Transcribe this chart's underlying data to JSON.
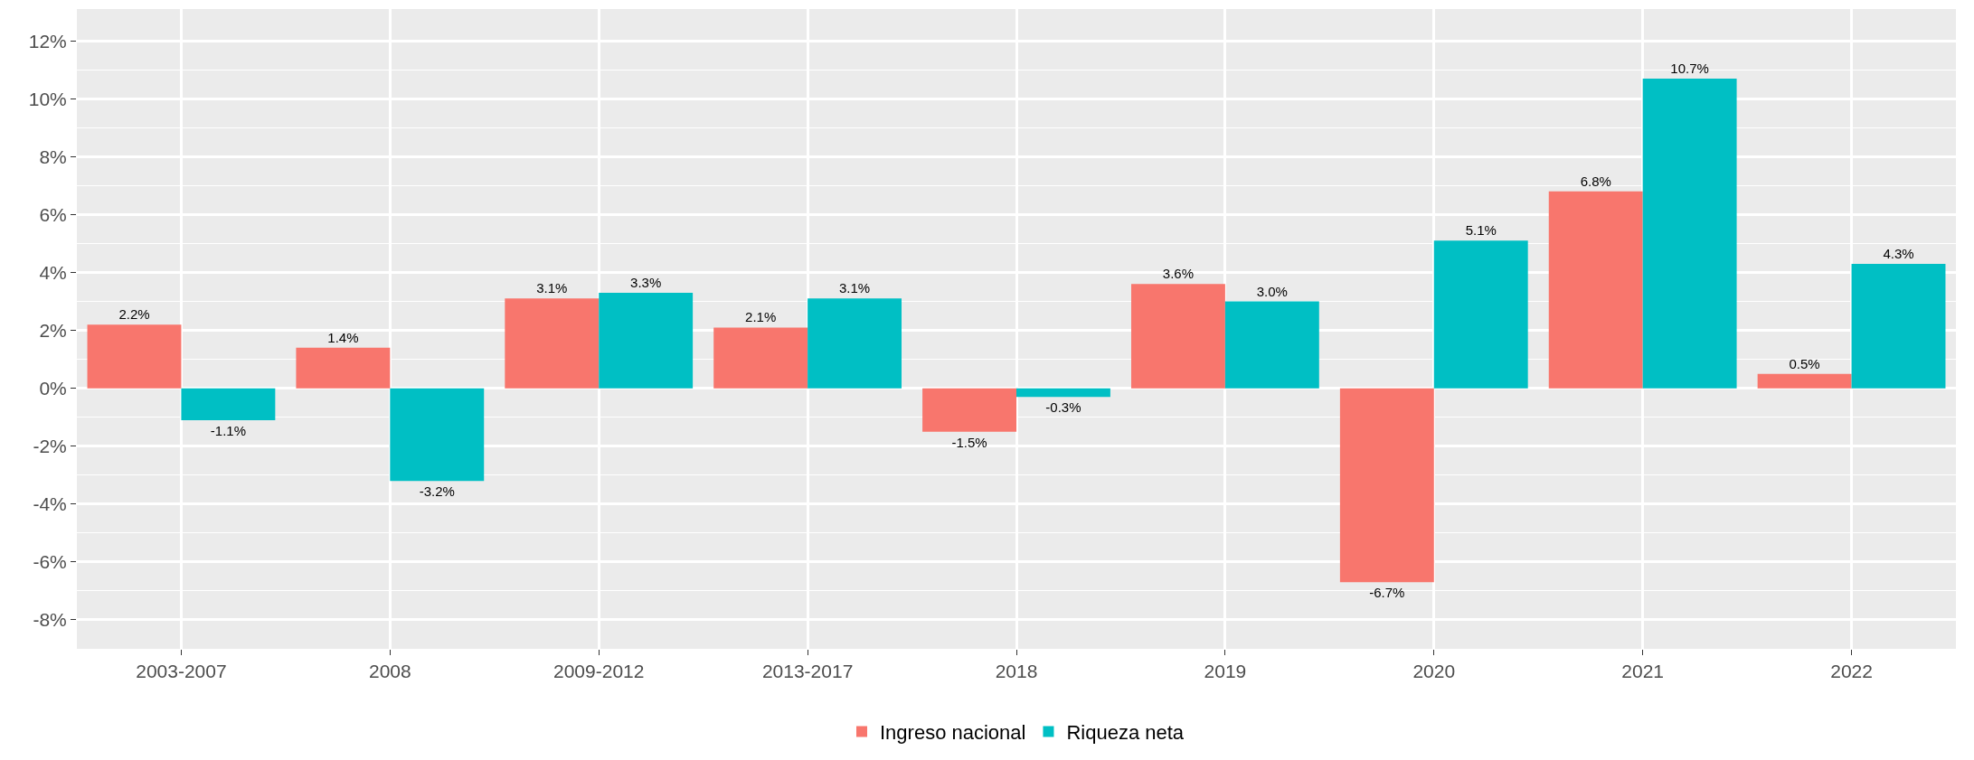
{
  "chart_data": {
    "type": "bar",
    "categories": [
      "2003-2007",
      "2008",
      "2009-2012",
      "2013-2017",
      "2018",
      "2019",
      "2020",
      "2021",
      "2022"
    ],
    "series": [
      {
        "name": "Ingreso nacional",
        "color": "#f8766d",
        "values": [
          2.2,
          1.4,
          3.1,
          2.1,
          -1.5,
          3.6,
          -6.7,
          6.8,
          0.5
        ],
        "value_labels": [
          "2.2%",
          "1.4%",
          "3.1%",
          "2.1%",
          "-1.5%",
          "3.6%",
          "-6.7%",
          "6.8%",
          "0.5%"
        ]
      },
      {
        "name": "Riqueza neta",
        "color": "#00bfc4",
        "values": [
          -1.1,
          -3.2,
          3.3,
          3.1,
          -0.3,
          3.0,
          5.1,
          10.7,
          4.3
        ],
        "value_labels": [
          "-1.1%",
          "-3.2%",
          "3.3%",
          "3.1%",
          "-0.3%",
          "3.0%",
          "5.1%",
          "10.7%",
          "4.3%"
        ]
      }
    ],
    "ylim": [
      -9,
      13.1
    ],
    "yticks": [
      {
        "value": -8,
        "label": "-8%"
      },
      {
        "value": -6,
        "label": "-6%"
      },
      {
        "value": -4,
        "label": "-4%"
      },
      {
        "value": -2,
        "label": "-2%"
      },
      {
        "value": 0,
        "label": "0%"
      },
      {
        "value": 2,
        "label": "2%"
      },
      {
        "value": 4,
        "label": "4%"
      },
      {
        "value": 6,
        "label": "6%"
      },
      {
        "value": 8,
        "label": "8%"
      },
      {
        "value": 10,
        "label": "10%"
      },
      {
        "value": 12,
        "label": "12%"
      }
    ],
    "grid": true,
    "legend": "bottom"
  }
}
